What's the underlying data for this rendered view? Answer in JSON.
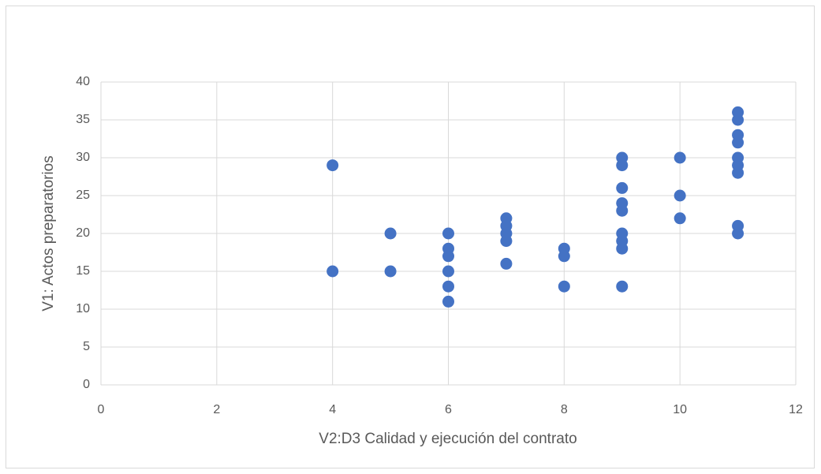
{
  "chart_data": {
    "type": "scatter",
    "xlabel": "V2:D3 Calidad y ejecución del contrato",
    "ylabel": "V1: Actos preparatorios",
    "series": [
      {
        "color": "#4472c4",
        "x": [
          4,
          4,
          5,
          5,
          6,
          6,
          6,
          6,
          6,
          6,
          7,
          7,
          7,
          7,
          7,
          8,
          8,
          8,
          9,
          9,
          9,
          9,
          9,
          9,
          9,
          9,
          9,
          10,
          10,
          10,
          11,
          11,
          11,
          11,
          11,
          11,
          11,
          11,
          11
        ],
        "values": [
          29,
          15,
          20,
          15,
          20,
          18,
          17,
          15,
          13,
          11,
          22,
          21,
          20,
          19,
          16,
          18,
          17,
          13,
          30,
          29,
          26,
          24,
          23,
          20,
          19,
          18,
          13,
          30,
          25,
          22,
          36,
          35,
          33,
          32,
          30,
          29,
          28,
          21,
          20
        ]
      }
    ],
    "xlim": [
      0,
      12
    ],
    "xticks": [
      0,
      2,
      4,
      6,
      8,
      10,
      12
    ],
    "ylim": [
      0,
      40
    ],
    "yticks": [
      0,
      5,
      10,
      15,
      20,
      25,
      30,
      35,
      40
    ],
    "grid": true
  }
}
